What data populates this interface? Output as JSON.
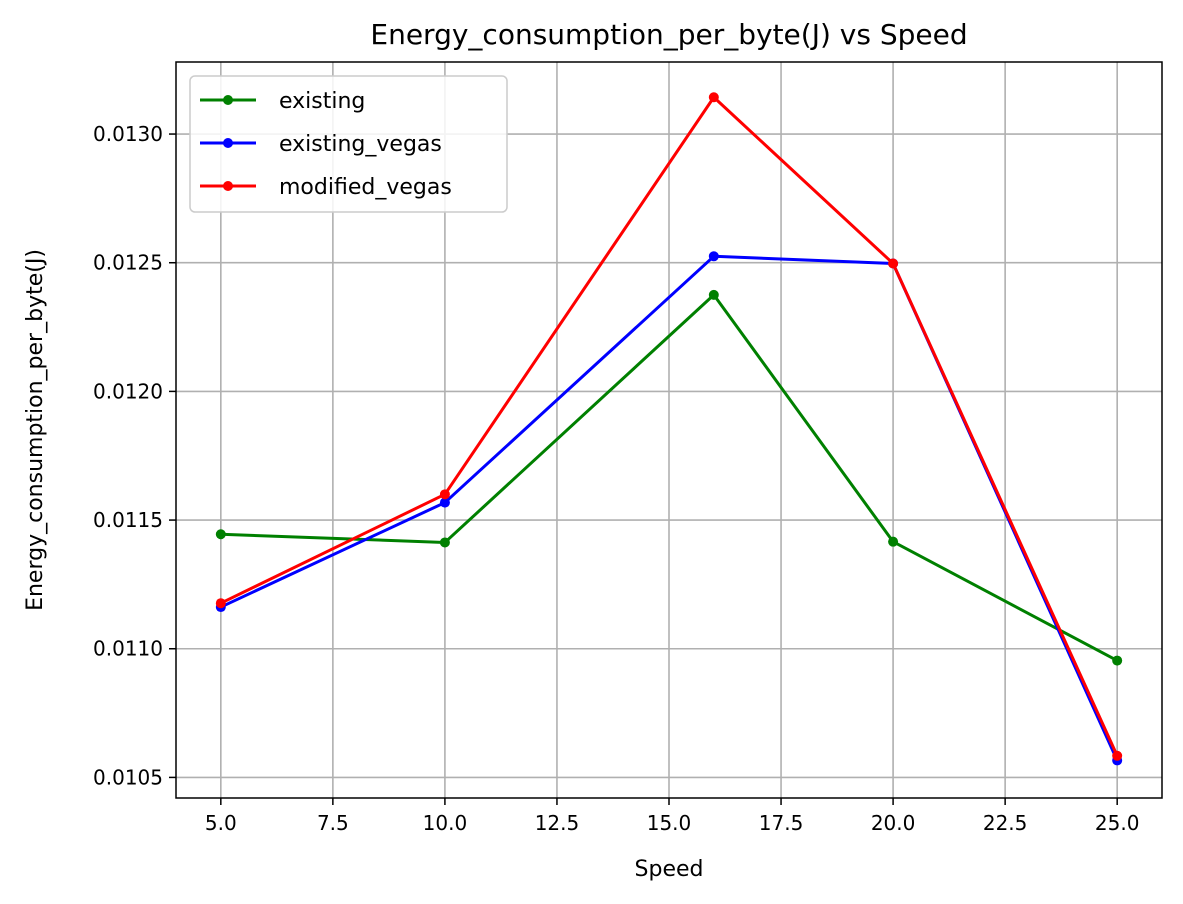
{
  "chart_data": {
    "type": "line",
    "title": "Energy_consumption_per_byte(J) vs Speed",
    "xlabel": "Speed",
    "ylabel": "Energy_consumption_per_byte(J)",
    "x": [
      5,
      10,
      16,
      20,
      25
    ],
    "xlim": [
      4,
      26
    ],
    "ylim": [
      0.01042,
      0.01328
    ],
    "xticks": [
      5.0,
      7.5,
      10.0,
      12.5,
      15.0,
      17.5,
      20.0,
      22.5,
      25.0
    ],
    "xtick_labels": [
      "5.0",
      "7.5",
      "10.0",
      "12.5",
      "15.0",
      "17.5",
      "20.0",
      "22.5",
      "25.0"
    ],
    "yticks": [
      0.0105,
      0.011,
      0.0115,
      0.012,
      0.0125,
      0.013
    ],
    "ytick_labels": [
      "0.0105",
      "0.0110",
      "0.0115",
      "0.0120",
      "0.0125",
      "0.0130"
    ],
    "grid": true,
    "legend_position": "top-left",
    "series": [
      {
        "name": "existing",
        "color": "#008000",
        "values": [
          0.011445,
          0.011413,
          0.012375,
          0.011416,
          0.010954
        ]
      },
      {
        "name": "existing_vegas",
        "color": "#0000ff",
        "values": [
          0.011162,
          0.011568,
          0.012525,
          0.012497,
          0.010566
        ]
      },
      {
        "name": "modified_vegas",
        "color": "#ff0000",
        "values": [
          0.011177,
          0.0116,
          0.013143,
          0.012497,
          0.010584
        ]
      }
    ]
  }
}
